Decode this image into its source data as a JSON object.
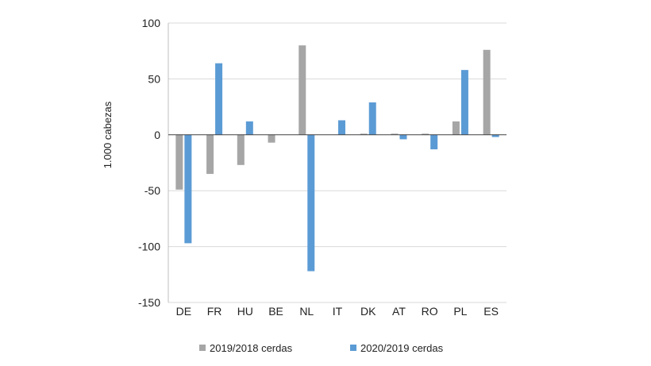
{
  "chart_data": {
    "type": "bar",
    "ylabel": "1.000 cabezas",
    "ylim": [
      -150,
      100
    ],
    "yticks": [
      100,
      50,
      0,
      -50,
      -100,
      -150
    ],
    "grid": true,
    "legend_position": "bottom",
    "categories": [
      "DE",
      "FR",
      "HU",
      "BE",
      "NL",
      "IT",
      "DK",
      "AT",
      "RO",
      "PL",
      "ES"
    ],
    "series": [
      {
        "name": "2019/2018 cerdas",
        "color": "#a6a6a6",
        "values": [
          -49,
          -35,
          -27,
          -7,
          80,
          0,
          1,
          1,
          1,
          12,
          76
        ]
      },
      {
        "name": "2020/2019 cerdas",
        "color": "#5b9bd5",
        "values": [
          -97,
          64,
          12,
          0,
          -122,
          13,
          29,
          -4,
          -13,
          58,
          -2
        ]
      }
    ]
  }
}
